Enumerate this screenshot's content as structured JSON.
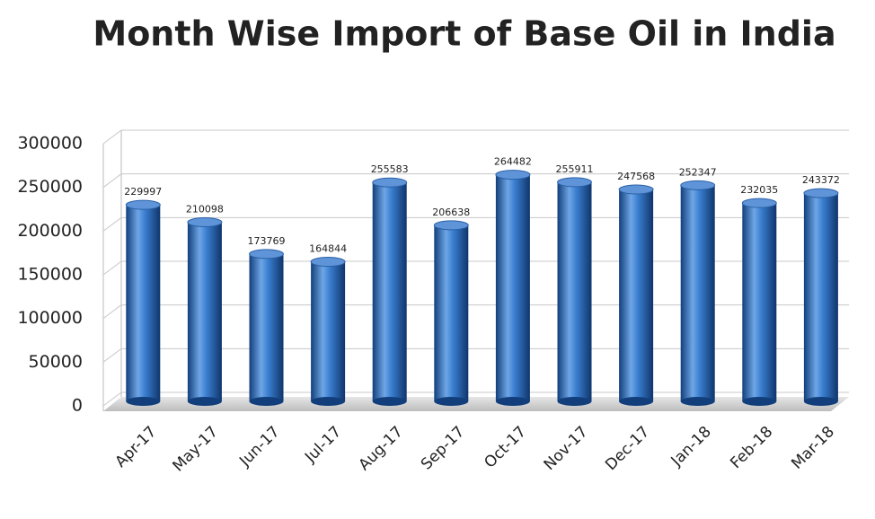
{
  "chart_data": {
    "type": "bar",
    "title": "Month Wise Import of Base Oil in India",
    "categories": [
      "Apr-17",
      "May-17",
      "Jun-17",
      "Jul-17",
      "Aug-17",
      "Sep-17",
      "Oct-17",
      "Nov-17",
      "Dec-17",
      "Jan-18",
      "Feb-18",
      "Mar-18"
    ],
    "values": [
      229997,
      210098,
      173769,
      164844,
      255583,
      206638,
      264482,
      255911,
      247568,
      252347,
      232035,
      243372
    ],
    "color": "#2f6fc0",
    "ylim": [
      0,
      300000
    ],
    "yticks": [
      0,
      50000,
      100000,
      150000,
      200000,
      250000,
      300000
    ],
    "grid": true
  }
}
